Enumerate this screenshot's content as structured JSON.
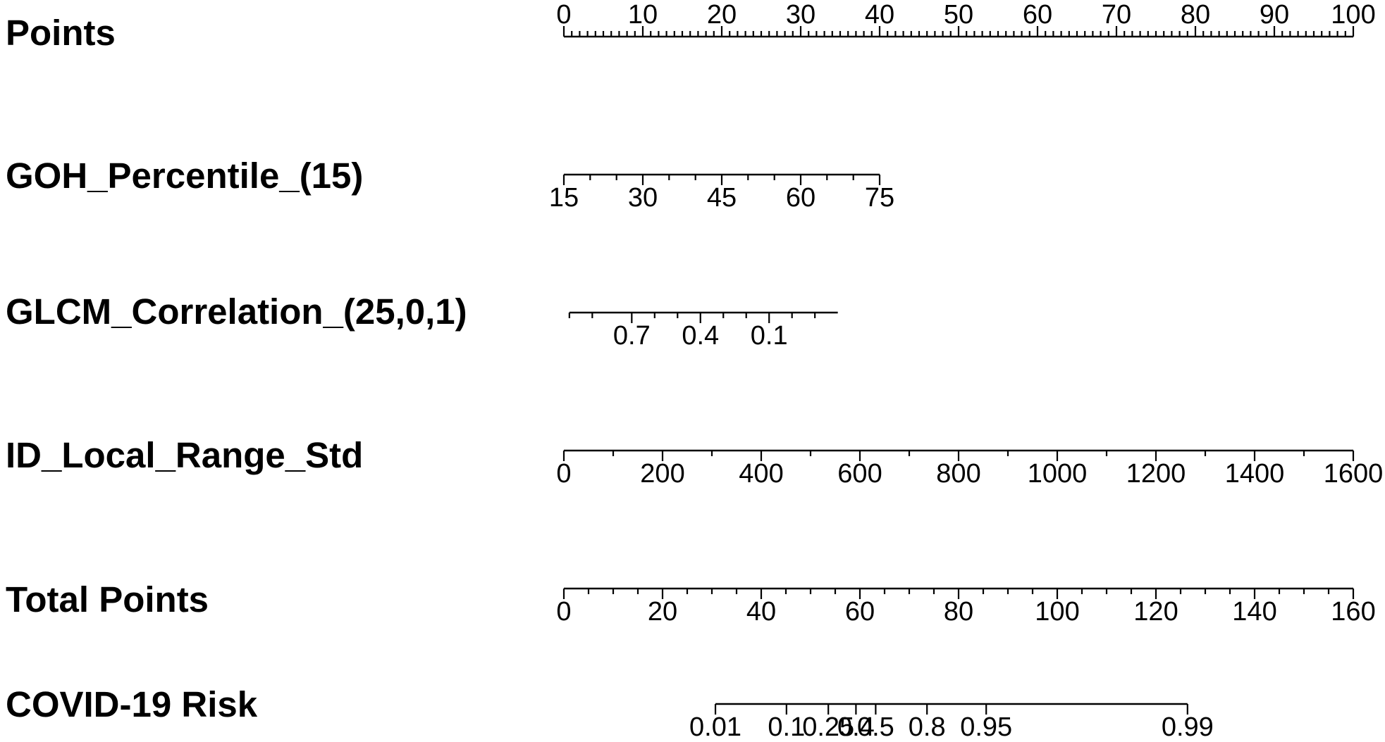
{
  "chart_data": {
    "type": "nomogram",
    "rows": [
      {
        "label": "Points",
        "ticks_above": true,
        "ticks": [
          {
            "value": 0,
            "points": 0,
            "text": "0"
          },
          {
            "value": 10,
            "points": 10,
            "text": "10"
          },
          {
            "value": 20,
            "points": 20,
            "text": "20"
          },
          {
            "value": 30,
            "points": 30,
            "text": "30"
          },
          {
            "value": 40,
            "points": 40,
            "text": "40"
          },
          {
            "value": 50,
            "points": 50,
            "text": "50"
          },
          {
            "value": 60,
            "points": 60,
            "text": "60"
          },
          {
            "value": 70,
            "points": 70,
            "text": "70"
          },
          {
            "value": 80,
            "points": 80,
            "text": "80"
          },
          {
            "value": 90,
            "points": 90,
            "text": "90"
          },
          {
            "value": 100,
            "points": 100,
            "text": "100"
          }
        ],
        "minor_points": [
          1,
          2,
          3,
          4,
          5,
          6,
          7,
          8,
          9,
          11,
          12,
          13,
          14,
          15,
          16,
          17,
          18,
          19,
          21,
          22,
          23,
          24,
          25,
          26,
          27,
          28,
          29,
          31,
          32,
          33,
          34,
          35,
          36,
          37,
          38,
          39,
          41,
          42,
          43,
          44,
          45,
          46,
          47,
          48,
          49,
          51,
          52,
          53,
          54,
          55,
          56,
          57,
          58,
          59,
          61,
          62,
          63,
          64,
          65,
          66,
          67,
          68,
          69,
          71,
          72,
          73,
          74,
          75,
          76,
          77,
          78,
          79,
          81,
          82,
          83,
          84,
          85,
          86,
          87,
          88,
          89,
          91,
          92,
          93,
          94,
          95,
          96,
          97,
          98,
          99
        ],
        "range_points": [
          0,
          100
        ]
      },
      {
        "label": "GOH_Percentile_(15)",
        "ticks_above": false,
        "ticks": [
          {
            "value": 15,
            "points": 0,
            "text": "15"
          },
          {
            "value": 30,
            "points": 10,
            "text": "30"
          },
          {
            "value": 45,
            "points": 20,
            "text": "45"
          },
          {
            "value": 60,
            "points": 30,
            "text": "60"
          },
          {
            "value": 75,
            "points": 40,
            "text": "75"
          }
        ],
        "minor_points": [
          3.33,
          6.67,
          13.33,
          16.67,
          23.33,
          26.67,
          33.33,
          36.67
        ],
        "range_points": [
          0,
          40
        ]
      },
      {
        "label": "GLCM_Correlation_(25,0,1)",
        "ticks_above": false,
        "ticks": [
          {
            "value": 0.7,
            "points": 8.6,
            "text": "0.7"
          },
          {
            "value": 0.4,
            "points": 17.3,
            "text": "0.4"
          },
          {
            "value": 0.1,
            "points": 26.0,
            "text": "0.1"
          }
        ],
        "minor_points": [
          0.7,
          3.6,
          11.5,
          14.4,
          20.2,
          23.1,
          28.9,
          31.8
        ],
        "range_points": [
          0.7,
          34.7
        ]
      },
      {
        "label": "ID_Local_Range_Std",
        "ticks_above": false,
        "ticks": [
          {
            "value": 0,
            "points": 0,
            "text": "0"
          },
          {
            "value": 200,
            "points": 12.5,
            "text": "200"
          },
          {
            "value": 400,
            "points": 25,
            "text": "400"
          },
          {
            "value": 600,
            "points": 37.5,
            "text": "600"
          },
          {
            "value": 800,
            "points": 50,
            "text": "800"
          },
          {
            "value": 1000,
            "points": 62.5,
            "text": "1000"
          },
          {
            "value": 1200,
            "points": 75,
            "text": "1200"
          },
          {
            "value": 1400,
            "points": 87.5,
            "text": "1400"
          },
          {
            "value": 1600,
            "points": 100,
            "text": "1600"
          }
        ],
        "minor_points": [
          6.25,
          18.75,
          31.25,
          43.75,
          56.25,
          68.75,
          81.25,
          93.75
        ],
        "range_points": [
          0,
          100
        ]
      },
      {
        "label": "Total Points",
        "ticks_above": false,
        "ticks": [
          {
            "value": 0,
            "points": 0,
            "text": "0"
          },
          {
            "value": 20,
            "points": 12.5,
            "text": "20"
          },
          {
            "value": 40,
            "points": 25,
            "text": "40"
          },
          {
            "value": 60,
            "points": 37.5,
            "text": "60"
          },
          {
            "value": 80,
            "points": 50,
            "text": "80"
          },
          {
            "value": 100,
            "points": 62.5,
            "text": "100"
          },
          {
            "value": 120,
            "points": 75,
            "text": "120"
          },
          {
            "value": 140,
            "points": 87.5,
            "text": "140"
          },
          {
            "value": 160,
            "points": 100,
            "text": "160"
          }
        ],
        "minor_points": [
          3.125,
          6.25,
          9.375,
          15.625,
          18.75,
          21.875,
          28.125,
          31.25,
          34.375,
          40.625,
          43.75,
          46.875,
          53.125,
          56.25,
          59.375,
          65.625,
          68.75,
          71.875,
          78.125,
          81.25,
          84.375,
          90.625,
          93.75,
          96.875
        ],
        "range_points": [
          0,
          100
        ]
      },
      {
        "label": "COVID-19 Risk",
        "ticks_above": false,
        "ticks": [
          {
            "value": 0.01,
            "points": 19.2,
            "text": "0.01"
          },
          {
            "value": 0.1,
            "points": 28.2,
            "text": "0.1"
          },
          {
            "value": 0.25,
            "points": 33.5,
            "text": "0.25"
          },
          {
            "value": 0.4,
            "points": 37.0,
            "text": "0.4"
          },
          {
            "value": 0.5,
            "points": 39.5,
            "text": "0.5"
          },
          {
            "value": 0.8,
            "points": 46.0,
            "text": "0.8"
          },
          {
            "value": 0.95,
            "points": 53.5,
            "text": "0.95"
          },
          {
            "value": 0.99,
            "points": 79.0,
            "text": "0.99"
          }
        ],
        "minor_points": [],
        "range_points": [
          19.2,
          79.0
        ]
      }
    ]
  }
}
